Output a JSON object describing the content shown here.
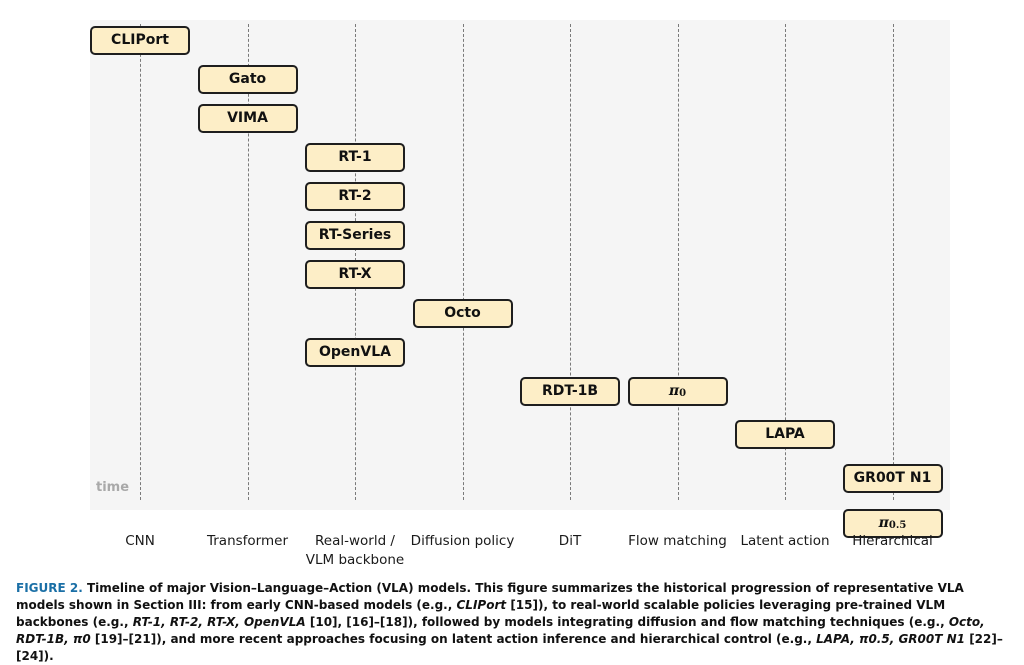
{
  "diagram": {
    "time_label": "time",
    "categories": [
      {
        "id": "cnn",
        "label": "CNN"
      },
      {
        "id": "transformer",
        "label": "Transformer"
      },
      {
        "id": "realworld",
        "label": "Real-world /",
        "label2": "VLM backbone"
      },
      {
        "id": "diffusion",
        "label": "Diffusion policy"
      },
      {
        "id": "dit",
        "label": "DiT"
      },
      {
        "id": "flow",
        "label": "Flow matching"
      },
      {
        "id": "latent",
        "label": "Latent action"
      },
      {
        "id": "hier",
        "label": "Hierarchical"
      }
    ],
    "models": [
      {
        "label": "CLIPort",
        "category": "cnn",
        "order": 1
      },
      {
        "label": "Gato",
        "category": "transformer",
        "order": 2
      },
      {
        "label": "VIMA",
        "category": "transformer",
        "order": 3
      },
      {
        "label": "RT-1",
        "category": "realworld",
        "order": 4
      },
      {
        "label": "RT-2",
        "category": "realworld",
        "order": 5
      },
      {
        "label": "RT-Series",
        "category": "realworld",
        "order": 6
      },
      {
        "label": "RT-X",
        "category": "realworld",
        "order": 7
      },
      {
        "label": "Octo",
        "category": "diffusion",
        "order": 8
      },
      {
        "label": "OpenVLA",
        "category": "realworld",
        "order": 9
      },
      {
        "label": "RDT-1B",
        "category": "dit",
        "order": 10
      },
      {
        "label": "π",
        "sub": "0",
        "category": "flow",
        "order": 10
      },
      {
        "label": "LAPA",
        "category": "latent",
        "order": 11
      },
      {
        "label": "GR00T N1",
        "category": "hier",
        "order": 12
      },
      {
        "label": "π",
        "sub": "0.5",
        "category": "hier",
        "order": 13
      }
    ]
  },
  "caption": {
    "figure": "FIGURE 2.",
    "title": "Timeline of major Vision–Language–Action (VLA) models.",
    "p1": "This figure summarizes the historical progression of representative VLA models shown in Section III: from early CNN-based models (e.g.,",
    "m1": "CLIPort",
    "r1": "[15]",
    "p2": "), to real-world scalable policies leveraging pre-trained VLM backbones (e.g.,",
    "m2": "RT-1, RT-2, RT-X, OpenVLA",
    "r2": "[10], [16]–[18]",
    "p3": "), followed by models integrating diffusion and flow matching techniques (e.g.,",
    "m3": "Octo, RDT-1B, π0",
    "r3": "[19]–[21]",
    "p4": "), and more recent approaches focusing on latent action inference and hierarchical control (e.g.,",
    "m4": "LAPA, π0.5, GR00T N1",
    "r4": "[22]–[24]",
    "p5": ")."
  }
}
